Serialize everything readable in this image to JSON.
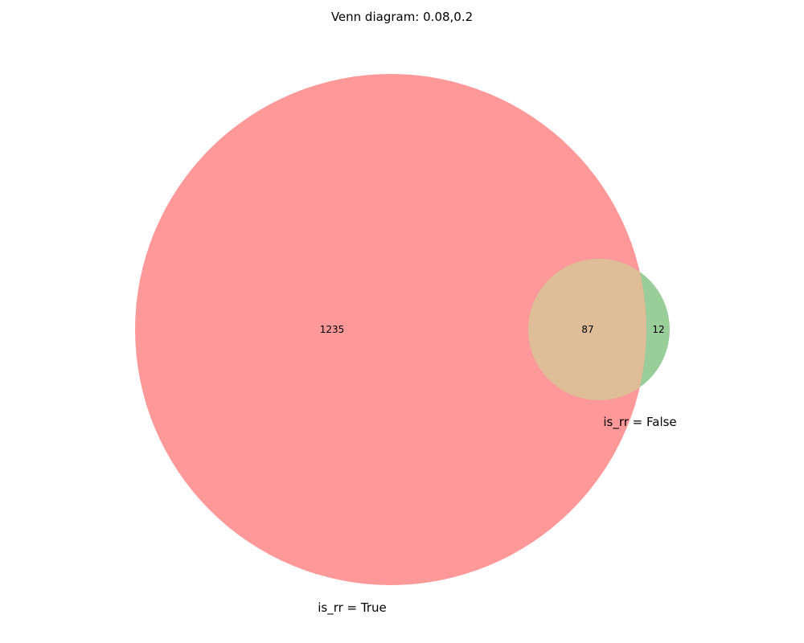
{
  "title": "Venn diagram: 0.08,0.2",
  "colors": {
    "set_a": "#ff8080",
    "set_b": "#80c080",
    "overlap": "#dfbd99",
    "background": "#ffffff"
  },
  "chart_data": {
    "type": "venn",
    "title": "Venn diagram: 0.08,0.2",
    "sets": [
      {
        "name": "is_rr = True",
        "color": "#ff8080"
      },
      {
        "name": "is_rr = False",
        "color": "#80c080"
      }
    ],
    "regions": {
      "only_a": "1235",
      "only_b": "12",
      "a_and_b": "87"
    }
  }
}
